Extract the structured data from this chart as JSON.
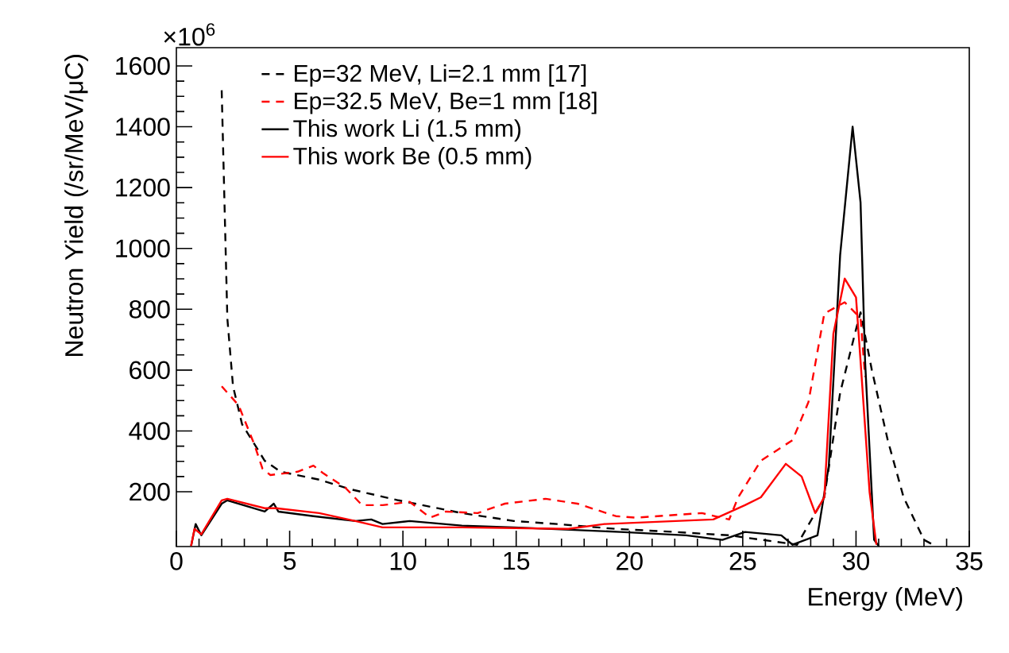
{
  "chart_data": {
    "type": "line",
    "xlabel": "Energy (MeV)",
    "ylabel": "Neutron Yield (/sr/MeV/μC)",
    "annotations": [
      "×10$^{6}$"
    ],
    "xlim": [
      0,
      35
    ],
    "ylim": [
      20,
      1660
    ],
    "xticks": [
      0,
      5,
      10,
      15,
      20,
      25,
      30,
      35
    ],
    "yticks": [
      200,
      400,
      600,
      800,
      1000,
      1200,
      1400,
      1600
    ],
    "grid": false,
    "legend": "top",
    "series": [
      {
        "name": "Ep=32 MeV, Li=2.1 mm [17]",
        "color": "#000000",
        "line_style": "dashed",
        "x": [
          2.0,
          2.25,
          2.5,
          2.9,
          3.9,
          4.6,
          6.3,
          7.7,
          9.8,
          12.6,
          14.9,
          16.8,
          19.4,
          22.0,
          24.4,
          27.4,
          28.6,
          29.3,
          30.0,
          30.2,
          30.7,
          31.4,
          32.1,
          33.0,
          33.5
        ],
        "values": [
          1520,
          770,
          547,
          422,
          302,
          266,
          240,
          208,
          172,
          130,
          104,
          94,
          78,
          68,
          57,
          26,
          182,
          526,
          734,
          790,
          600,
          370,
          182,
          42,
          22
        ]
      },
      {
        "name": "Ep=32.5 MeV, Be=1 mm [18]",
        "color": "#ff0000",
        "line_style": "dashed",
        "x": [
          2.0,
          2.75,
          3.45,
          3.8,
          4.15,
          5.35,
          6.05,
          6.5,
          7.45,
          8.2,
          9.1,
          10.3,
          11.2,
          11.9,
          13.3,
          14.5,
          16.3,
          17.7,
          19.4,
          20.3,
          23.2,
          24.4,
          24.8,
          25.8,
          27.2,
          27.9,
          28.6,
          29.5,
          30.2,
          30.4
        ],
        "values": [
          547,
          484,
          354,
          276,
          255,
          266,
          286,
          260,
          214,
          156,
          156,
          167,
          115,
          135,
          130,
          161,
          177,
          161,
          120,
          115,
          130,
          109,
          182,
          302,
          370,
          495,
          786,
          823,
          771,
          578
        ]
      },
      {
        "name": "This work Li (1.5 mm)",
        "color": "#000000",
        "line_style": "solid",
        "x": [
          0.65,
          0.85,
          1.1,
          2.0,
          2.25,
          3.9,
          4.3,
          4.5,
          6.05,
          7.9,
          8.6,
          9.1,
          10.3,
          12.6,
          14.9,
          19.6,
          22.5,
          24.1,
          25.1,
          26.7,
          27.2,
          28.3,
          28.8,
          29.3,
          29.85,
          30.2,
          30.4,
          30.8,
          31.0
        ],
        "values": [
          22,
          94,
          57,
          161,
          172,
          135,
          161,
          135,
          120,
          104,
          109,
          94,
          104,
          89,
          83,
          68,
          57,
          42,
          68,
          57,
          26,
          57,
          286,
          979,
          1400,
          1151,
          630,
          42,
          22
        ]
      },
      {
        "name": "This work Be (0.5 mm)",
        "color": "#ff0000",
        "line_style": "solid",
        "x": [
          0.65,
          0.8,
          1.1,
          2.0,
          2.25,
          3.9,
          4.4,
          6.3,
          7.9,
          9.1,
          12.6,
          17.3,
          18.9,
          23.7,
          25.1,
          25.8,
          26.9,
          27.6,
          28.2,
          28.6,
          29.0,
          29.5,
          30.0,
          30.2,
          30.6,
          30.9
        ],
        "values": [
          22,
          78,
          60,
          172,
          177,
          146,
          146,
          130,
          104,
          83,
          83,
          78,
          94,
          109,
          156,
          182,
          292,
          250,
          130,
          182,
          719,
          901,
          839,
          630,
          198,
          26
        ]
      }
    ]
  }
}
